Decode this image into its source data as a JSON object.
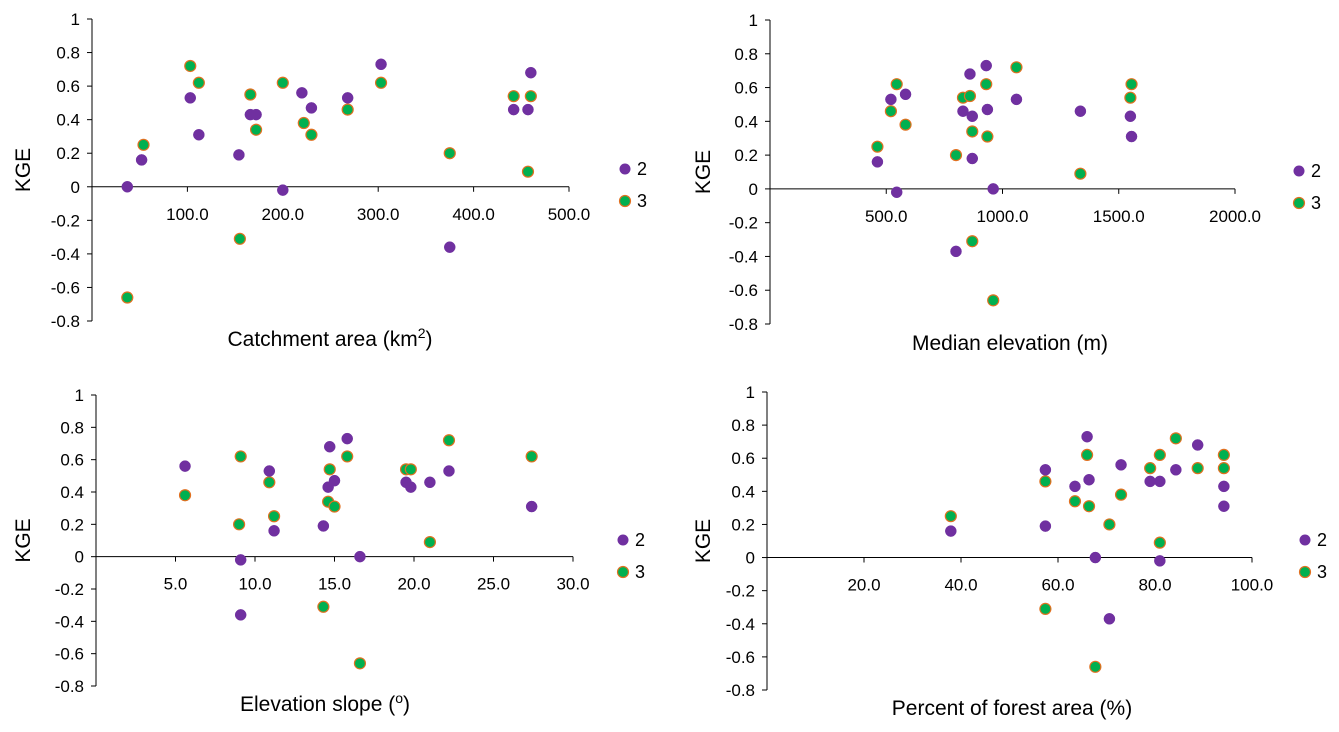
{
  "colors": {
    "series2": "#7030A0",
    "series3": "#00B050",
    "series3_edge": "#E07020",
    "axis": "#000000"
  },
  "chart_data": [
    {
      "type": "scatter",
      "xlabel": "Catchment area (km",
      "xlabel_sup": "2",
      "xlabel_suffix": ")",
      "ylabel": "KGE",
      "xlim": [
        0,
        500
      ],
      "ylim": [
        -0.8,
        1
      ],
      "xticks": [
        100,
        200,
        300,
        400,
        500
      ],
      "xtick_labels": [
        "100.0",
        "200.0",
        "300.0",
        "400.0",
        "500.0"
      ],
      "yticks": [
        -0.8,
        -0.6,
        -0.4,
        -0.2,
        0,
        0.2,
        0.4,
        0.6,
        0.8,
        1
      ],
      "ytick_labels": [
        "-0.8",
        "-0.6",
        "-0.4",
        "-0.2",
        "0",
        "0.2",
        "0.4",
        "0.6",
        "0.8",
        "1"
      ],
      "legend_position": "right",
      "series": [
        {
          "name": "2",
          "points": [
            [
              37,
              0
            ],
            [
              52,
              0.16
            ],
            [
              103,
              0.53
            ],
            [
              112,
              0.31
            ],
            [
              154,
              0.19
            ],
            [
              166,
              0.43
            ],
            [
              172,
              0.43
            ],
            [
              200,
              -0.02
            ],
            [
              220,
              0.56
            ],
            [
              230,
              0.47
            ],
            [
              268,
              0.53
            ],
            [
              303,
              0.73
            ],
            [
              375,
              -0.36
            ],
            [
              442,
              0.46
            ],
            [
              457,
              0.46
            ],
            [
              460,
              0.68
            ]
          ]
        },
        {
          "name": "3",
          "points": [
            [
              37,
              -0.66
            ],
            [
              54,
              0.25
            ],
            [
              103,
              0.72
            ],
            [
              112,
              0.62
            ],
            [
              155,
              -0.31
            ],
            [
              166,
              0.55
            ],
            [
              172,
              0.34
            ],
            [
              200,
              0.62
            ],
            [
              222,
              0.38
            ],
            [
              230,
              0.31
            ],
            [
              268,
              0.46
            ],
            [
              303,
              0.62
            ],
            [
              375,
              0.2
            ],
            [
              442,
              0.54
            ],
            [
              457,
              0.09
            ],
            [
              460,
              0.54
            ]
          ]
        }
      ]
    },
    {
      "type": "scatter",
      "xlabel": "Median elevation (m)",
      "ylabel": "KGE",
      "xlim": [
        0,
        2000
      ],
      "ylim": [
        -0.8,
        1
      ],
      "xticks": [
        500,
        1000,
        1500,
        2000
      ],
      "xtick_labels": [
        "500.0",
        "1000.0",
        "1500.0",
        "2000.0"
      ],
      "yticks": [
        -0.8,
        -0.6,
        -0.4,
        -0.2,
        0,
        0.2,
        0.4,
        0.6,
        0.8,
        1
      ],
      "ytick_labels": [
        "-0.8",
        "-0.6",
        "-0.4",
        "-0.2",
        "0",
        "0.2",
        "0.4",
        "0.6",
        "0.8",
        "1"
      ],
      "legend_position": "right",
      "series": [
        {
          "name": "2",
          "points": [
            [
              462,
              0.16
            ],
            [
              520,
              0.53
            ],
            [
              545,
              -0.02
            ],
            [
              583,
              0.56
            ],
            [
              800,
              -0.37
            ],
            [
              830,
              0.46
            ],
            [
              860,
              0.68
            ],
            [
              870,
              0.43
            ],
            [
              870,
              0.18
            ],
            [
              930,
              0.73
            ],
            [
              935,
              0.47
            ],
            [
              960,
              0
            ],
            [
              1060,
              0.53
            ],
            [
              1335,
              0.46
            ],
            [
              1550,
              0.43
            ],
            [
              1555,
              0.31
            ]
          ]
        },
        {
          "name": "3",
          "points": [
            [
              462,
              0.25
            ],
            [
              520,
              0.46
            ],
            [
              545,
              0.62
            ],
            [
              583,
              0.38
            ],
            [
              800,
              0.2
            ],
            [
              830,
              0.54
            ],
            [
              860,
              0.55
            ],
            [
              870,
              0.34
            ],
            [
              870,
              -0.31
            ],
            [
              930,
              0.62
            ],
            [
              935,
              0.31
            ],
            [
              960,
              -0.66
            ],
            [
              1060,
              0.72
            ],
            [
              1335,
              0.09
            ],
            [
              1550,
              0.54
            ],
            [
              1555,
              0.62
            ]
          ]
        }
      ]
    },
    {
      "type": "scatter",
      "xlabel": "Elevation slope (",
      "xlabel_sup": "o",
      "xlabel_suffix": ")",
      "ylabel": "KGE",
      "xlim": [
        0,
        30
      ],
      "ylim": [
        -0.8,
        1
      ],
      "xticks": [
        5,
        10,
        15,
        20,
        25,
        30
      ],
      "xtick_labels": [
        "5.0",
        "10.0",
        "15.0",
        "20.0",
        "25.0",
        "30.0"
      ],
      "yticks": [
        -0.8,
        -0.6,
        -0.4,
        -0.2,
        0,
        0.2,
        0.4,
        0.6,
        0.8,
        1
      ],
      "ytick_labels": [
        "-0.8",
        "-0.6",
        "-0.4",
        "-0.2",
        "0",
        "0.2",
        "0.4",
        "0.6",
        "0.8",
        "1"
      ],
      "legend_position": "right",
      "series": [
        {
          "name": "2",
          "points": [
            [
              5.6,
              0.56
            ],
            [
              9.1,
              -0.02
            ],
            [
              9.1,
              -0.36
            ],
            [
              10.9,
              0.53
            ],
            [
              11.2,
              0.16
            ],
            [
              14.3,
              0.19
            ],
            [
              14.6,
              0.43
            ],
            [
              14.7,
              0.68
            ],
            [
              15.0,
              0.47
            ],
            [
              15.8,
              0.73
            ],
            [
              16.6,
              0
            ],
            [
              19.5,
              0.46
            ],
            [
              19.8,
              0.43
            ],
            [
              21.0,
              0.46
            ],
            [
              22.2,
              0.53
            ],
            [
              27.4,
              0.31
            ]
          ]
        },
        {
          "name": "3",
          "points": [
            [
              5.6,
              0.38
            ],
            [
              9.1,
              0.62
            ],
            [
              9.0,
              0.2
            ],
            [
              10.9,
              0.46
            ],
            [
              11.2,
              0.25
            ],
            [
              14.3,
              -0.31
            ],
            [
              14.6,
              0.34
            ],
            [
              14.7,
              0.54
            ],
            [
              15.0,
              0.31
            ],
            [
              15.8,
              0.62
            ],
            [
              16.6,
              -0.66
            ],
            [
              19.5,
              0.54
            ],
            [
              19.8,
              0.54
            ],
            [
              21.0,
              0.09
            ],
            [
              22.2,
              0.72
            ],
            [
              27.4,
              0.62
            ]
          ]
        }
      ]
    },
    {
      "type": "scatter",
      "xlabel": "Percent of forest area (%)",
      "ylabel": "KGE",
      "xlim": [
        0,
        100
      ],
      "ylim": [
        -0.8,
        1
      ],
      "xticks": [
        20,
        40,
        60,
        80,
        100
      ],
      "xtick_labels": [
        "20.0",
        "40.0",
        "60.0",
        "80.0",
        "100.0"
      ],
      "yticks": [
        -0.8,
        -0.6,
        -0.4,
        -0.2,
        0,
        0.2,
        0.4,
        0.6,
        0.8,
        1
      ],
      "ytick_labels": [
        "-0.8",
        "-0.6",
        "-0.4",
        "-0.2",
        "0",
        "0.2",
        "0.4",
        "0.6",
        "0.8",
        "1"
      ],
      "legend_position": "right",
      "series": [
        {
          "name": "2",
          "points": [
            [
              37.9,
              0.16
            ],
            [
              57.4,
              0.53
            ],
            [
              57.4,
              0.19
            ],
            [
              63.5,
              0.43
            ],
            [
              66.0,
              0.73
            ],
            [
              66.4,
              0.47
            ],
            [
              67.7,
              0
            ],
            [
              70.6,
              -0.37
            ],
            [
              73.0,
              0.56
            ],
            [
              79.0,
              0.46
            ],
            [
              81.0,
              0.46
            ],
            [
              81.0,
              -0.02
            ],
            [
              84.3,
              0.53
            ],
            [
              88.8,
              0.68
            ],
            [
              94.2,
              0.43
            ],
            [
              94.2,
              0.31
            ]
          ]
        },
        {
          "name": "3",
          "points": [
            [
              37.9,
              0.25
            ],
            [
              57.4,
              0.46
            ],
            [
              57.4,
              -0.31
            ],
            [
              63.5,
              0.34
            ],
            [
              66.0,
              0.62
            ],
            [
              66.4,
              0.31
            ],
            [
              67.7,
              -0.66
            ],
            [
              70.6,
              0.2
            ],
            [
              73.0,
              0.38
            ],
            [
              79.0,
              0.54
            ],
            [
              81.0,
              0.62
            ],
            [
              81.0,
              0.09
            ],
            [
              84.3,
              0.72
            ],
            [
              88.8,
              0.54
            ],
            [
              94.2,
              0.62
            ],
            [
              94.2,
              0.54
            ]
          ]
        }
      ]
    }
  ]
}
